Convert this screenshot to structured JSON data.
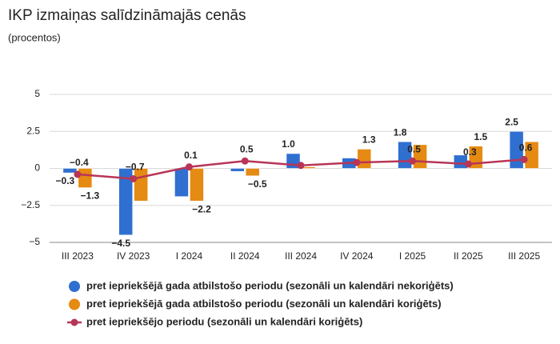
{
  "chart_data": {
    "type": "bar-line",
    "title": "IKP izmaiņas salīdzināmajās cenās",
    "subtitle": "(procentos)",
    "categories": [
      "III 2023",
      "IV 2023",
      "I 2024",
      "II 2024",
      "III 2024",
      "IV 2024",
      "I 2025",
      "II 2025",
      "III 2025"
    ],
    "ylim": [
      -5,
      5
    ],
    "yticks": [
      {
        "value": -5,
        "label": "−5"
      },
      {
        "value": -2.5,
        "label": "−2.5"
      },
      0,
      2.5,
      5
    ],
    "series": [
      {
        "name": "pret iepriekšējā gada atbilstošo periodu (sezonāli un kalendāri nekoriģēts)",
        "type": "bar",
        "color": "#2f6fd0",
        "values": [
          -0.3,
          -4.5,
          -1.9,
          -0.2,
          1.0,
          0.7,
          1.8,
          0.9,
          2.5
        ],
        "value_labels": [
          "−0.3",
          "−4.5",
          null,
          null,
          "1.0",
          null,
          "1.8",
          null,
          "2.5"
        ]
      },
      {
        "name": "pret iepriekšējā gada atbilstošo periodu (sezonāli un kalendāri koriģēts)",
        "type": "bar",
        "color": "#e58a12",
        "values": [
          -1.3,
          -2.2,
          -2.2,
          -0.5,
          0.1,
          1.3,
          1.6,
          1.5,
          1.8
        ],
        "value_labels": [
          "−1.3",
          null,
          "−2.2",
          "−0.5",
          null,
          "1.3",
          null,
          "1.5",
          null
        ]
      },
      {
        "name": "pret iepriekšējo periodu (sezonāli un kalendāri koriģēts)",
        "type": "line",
        "color": "#b83556",
        "values": [
          -0.4,
          -0.7,
          0.1,
          0.5,
          0.2,
          0.4,
          0.5,
          0.3,
          0.6
        ],
        "value_labels": [
          "−0.4",
          "−0.7",
          "0.1",
          "0.5",
          null,
          null,
          "0.5",
          "0.3",
          "0.6"
        ]
      }
    ]
  }
}
